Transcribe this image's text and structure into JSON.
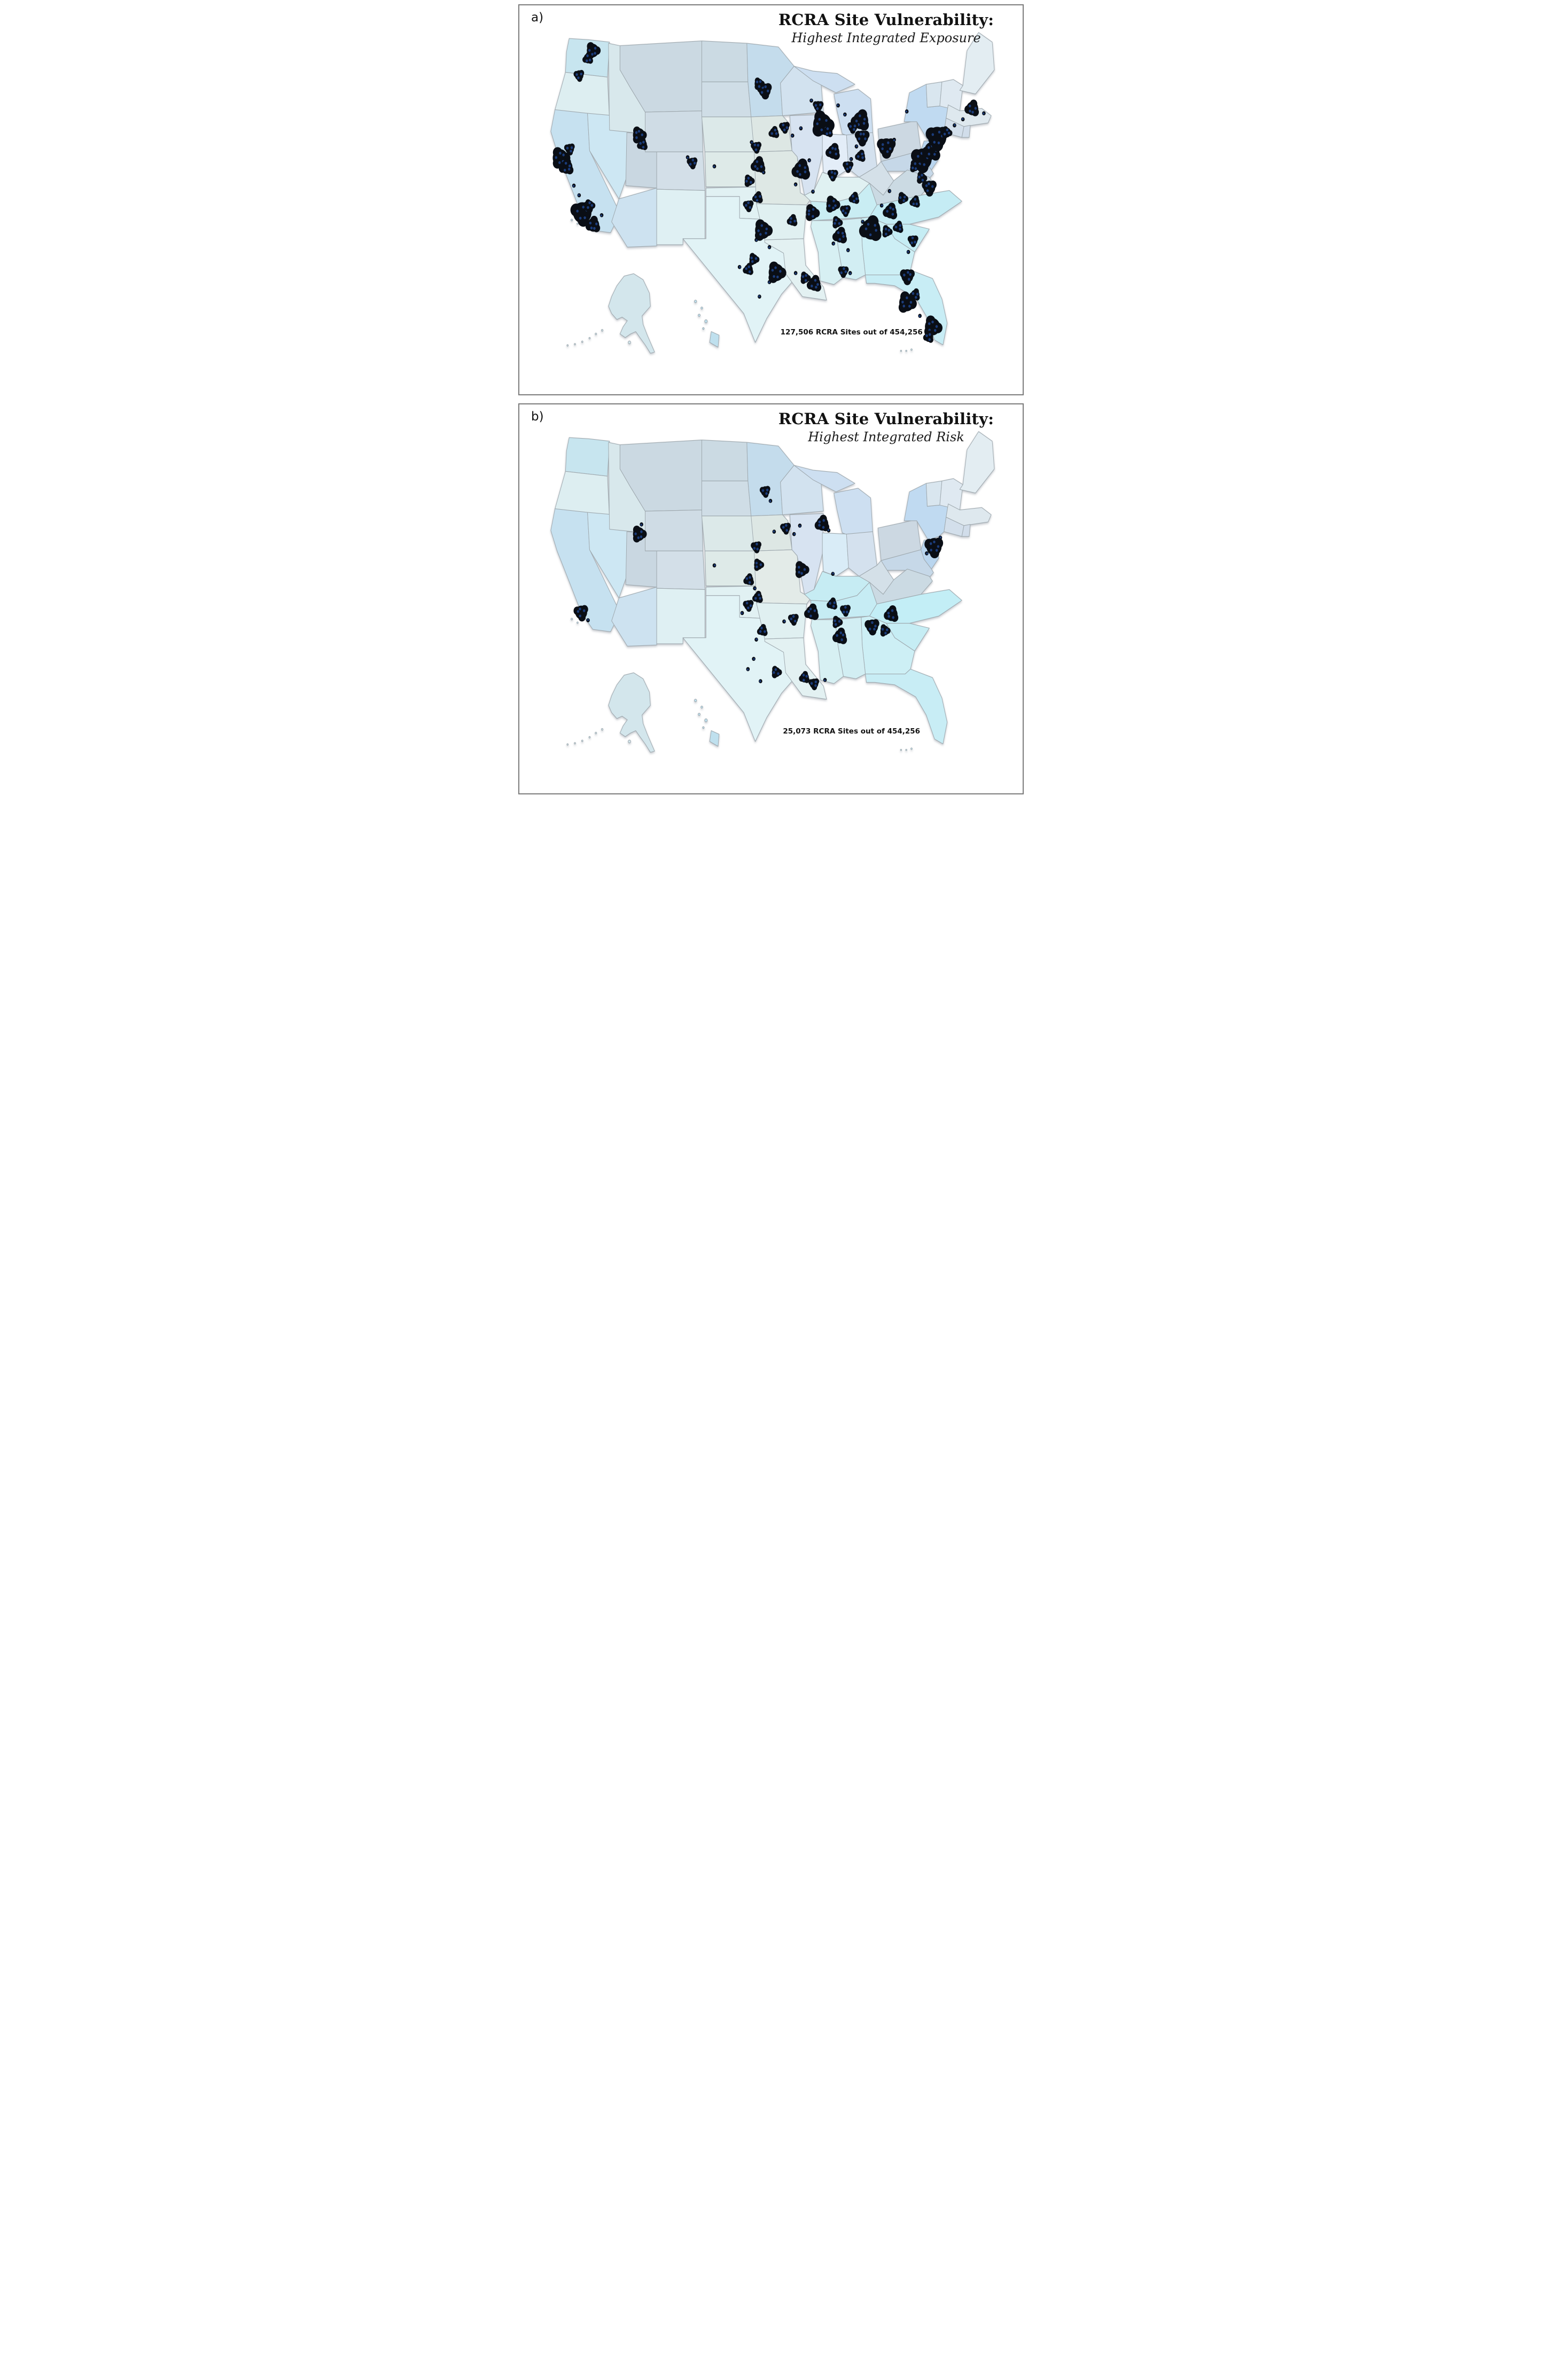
{
  "figure": {
    "kind": "two-panel choropleth dot map of the contiguous United States",
    "dot_meaning": "RCRA site locations"
  },
  "colors": {
    "dot_core": "#0a0e15",
    "dot_inner": "#1b3c7a",
    "state_border": "#9fa9af",
    "panel_border": "#7b7b7b",
    "background": "#ffffff",
    "text": "#111111"
  },
  "map_fills": {
    "WA": "#c7e5ef",
    "OR": "#ddeef1",
    "CA": "#c6e1f0",
    "NV": "#cde7f3",
    "ID": "#d8e8ec",
    "MT": "#cbd9e2",
    "WY": "#cfdce5",
    "UT": "#c9d7e1",
    "CO": "#d3dfe8",
    "AZ": "#cde2f0",
    "NM": "#dff0f3",
    "ND": "#cbdae3",
    "SD": "#cfdde6",
    "NE": "#dce9e9",
    "KS": "#deeae8",
    "OK": "#e1f1f3",
    "TX": "#e1f3f6",
    "MN": "#c4dcec",
    "IA": "#dde7e4",
    "MO": "#dee8e5",
    "WI": "#d2e2ef",
    "IL": "#d7e3f1",
    "MI": "#cddff1",
    "IN": "#dcebf6",
    "OH": "#d4e1ee",
    "KY": "#dcecee",
    "TN": "#c9edf3",
    "PA": "#ccd8e2",
    "NY": "#c0daf1",
    "NJ": "#b9d5ee",
    "MD": "#c6d8e8",
    "WV": "#d4e0e8",
    "VA": "#cbdae3",
    "NC": "#c5ecf4",
    "SC": "#c6edf4",
    "GA": "#cdeff5",
    "AL": "#d2eef3",
    "MS": "#d7f0f3",
    "AR": "#e0f0f1",
    "LA": "#e3f1f2",
    "FL": "#c8edf5",
    "VT": "#d9e6ef",
    "NH": "#dfe9f1",
    "ME": "#e3edf2",
    "MA": "#dee8ee",
    "CT": "#d3dfeb",
    "RI": "#d1ddea",
    "AK": "#d3e6ec",
    "HI": "#bfe0ee"
  },
  "panels": [
    {
      "id": "a",
      "label": "a)",
      "title": "RCRA Site Vulnerability:",
      "subtitle": "Highest Integrated Exposure",
      "caption": "127,506 RCRA Sites out of 454,256",
      "sites_shown": "127,506",
      "sites_total": "454,256",
      "fill_overrides": {
        "KY": "#e0f1f2",
        "IN": "#e3edf8"
      },
      "clusters": [
        [
          140,
          60,
          3
        ],
        [
          131,
          73,
          2
        ],
        [
          114,
          101,
          2
        ],
        [
          78,
          238,
          4
        ],
        [
          90,
          253,
          3
        ],
        [
          96,
          223,
          2
        ],
        [
          104,
          284,
          1
        ],
        [
          114,
          300,
          1
        ],
        [
          120,
          329,
          5
        ],
        [
          134,
          317,
          2
        ],
        [
          141,
          349,
          3
        ],
        [
          157,
          333,
          1
        ],
        [
          228,
          200,
          3
        ],
        [
          235,
          216,
          2
        ],
        [
          330,
          246,
          2
        ],
        [
          321,
          237,
          1
        ],
        [
          372,
          252,
          1
        ],
        [
          468,
          126,
          3
        ],
        [
          457,
          115,
          2
        ],
        [
          486,
          196,
          2
        ],
        [
          506,
          187,
          2
        ],
        [
          521,
          201,
          1
        ],
        [
          537,
          189,
          1
        ],
        [
          452,
          220,
          2
        ],
        [
          443,
          212,
          1
        ],
        [
          456,
          250,
          3
        ],
        [
          466,
          262,
          1
        ],
        [
          438,
          276,
          2
        ],
        [
          538,
          258,
          4
        ],
        [
          553,
          242,
          1
        ],
        [
          527,
          282,
          1
        ],
        [
          455,
          304,
          2
        ],
        [
          437,
          317,
          2
        ],
        [
          464,
          358,
          4
        ],
        [
          452,
          374,
          1
        ],
        [
          477,
          386,
          1
        ],
        [
          447,
          406,
          2
        ],
        [
          437,
          423,
          2
        ],
        [
          420,
          419,
          1
        ],
        [
          490,
          428,
          4
        ],
        [
          477,
          444,
          1
        ],
        [
          458,
          468,
          1
        ],
        [
          545,
          437,
          2
        ],
        [
          563,
          447,
          3
        ],
        [
          527,
          429,
          1
        ],
        [
          558,
          329,
          3
        ],
        [
          521,
          342,
          2
        ],
        [
          560,
          294,
          1
        ],
        [
          597,
          315,
          3
        ],
        [
          639,
          305,
          2
        ],
        [
          622,
          325,
          2
        ],
        [
          606,
          345,
          2
        ],
        [
          612,
          367,
          3
        ],
        [
          599,
          380,
          1
        ],
        [
          627,
          391,
          1
        ],
        [
          671,
          356,
          5
        ],
        [
          655,
          344,
          1
        ],
        [
          701,
          360,
          2
        ],
        [
          723,
          353,
          2
        ],
        [
          751,
          375,
          2
        ],
        [
          742,
          394,
          1
        ],
        [
          708,
          327,
          3
        ],
        [
          691,
          317,
          1
        ],
        [
          731,
          305,
          2
        ],
        [
          755,
          311,
          2
        ],
        [
          782,
          287,
          3
        ],
        [
          767,
          271,
          2
        ],
        [
          706,
          293,
          1
        ],
        [
          769,
          240,
          5
        ],
        [
          754,
          252,
          2
        ],
        [
          787,
          226,
          4
        ],
        [
          797,
          204,
          5
        ],
        [
          815,
          196,
          2
        ],
        [
          864,
          156,
          3
        ],
        [
          886,
          164,
          1
        ],
        [
          846,
          174,
          1
        ],
        [
          830,
          184,
          1
        ],
        [
          700,
          220,
          4
        ],
        [
          715,
          208,
          1
        ],
        [
          739,
          161,
          1
        ],
        [
          654,
          204,
          3
        ],
        [
          643,
          219,
          1
        ],
        [
          651,
          235,
          2
        ],
        [
          627,
          252,
          2
        ],
        [
          633,
          240,
          1
        ],
        [
          599,
          228,
          3
        ],
        [
          598,
          266,
          2
        ],
        [
          578,
          182,
          5
        ],
        [
          589,
          194,
          2
        ],
        [
          570,
          152,
          2
        ],
        [
          557,
          143,
          1
        ],
        [
          651,
          176,
          4
        ],
        [
          636,
          187,
          2
        ],
        [
          621,
          166,
          1
        ],
        [
          608,
          151,
          1
        ],
        [
          740,
          434,
          3
        ],
        [
          739,
          478,
          4
        ],
        [
          755,
          465,
          2
        ],
        [
          764,
          500,
          1
        ],
        [
          788,
          518,
          4
        ],
        [
          781,
          535,
          2
        ],
        [
          618,
          426,
          2
        ],
        [
          631,
          429,
          1
        ]
      ]
    },
    {
      "id": "b",
      "label": "b)",
      "title": "RCRA Site Vulnerability:",
      "subtitle": "Highest Integrated Risk",
      "caption": "25,073 RCRA Sites out of 454,256",
      "sites_shown": "25,073",
      "sites_total": "454,256",
      "fill_overrides": {
        "KY": "#c6ecf3",
        "IN": "#d9ecf7",
        "NC": "#c3eef6",
        "MO": "#e3ebe8",
        "TN": "#c6ecf4"
      },
      "clusters": [
        [
          228,
          200,
          3
        ],
        [
          233,
          184,
          1
        ],
        [
          118,
          330,
          3
        ],
        [
          131,
          343,
          1
        ],
        [
          372,
          252,
          1
        ],
        [
          469,
          129,
          2
        ],
        [
          479,
          145,
          1
        ],
        [
          486,
          196,
          1
        ],
        [
          508,
          190,
          2
        ],
        [
          524,
          200,
          1
        ],
        [
          535,
          186,
          1
        ],
        [
          452,
          221,
          2
        ],
        [
          456,
          251,
          2
        ],
        [
          438,
          276,
          2
        ],
        [
          449,
          290,
          1
        ],
        [
          538,
          259,
          3
        ],
        [
          578,
          183,
          3
        ],
        [
          590,
          194,
          1
        ],
        [
          598,
          266,
          1
        ],
        [
          455,
          305,
          2
        ],
        [
          437,
          318,
          2
        ],
        [
          425,
          331,
          1
        ],
        [
          464,
          360,
          2
        ],
        [
          452,
          375,
          1
        ],
        [
          447,
          407,
          1
        ],
        [
          436,
          424,
          1
        ],
        [
          460,
          444,
          1
        ],
        [
          490,
          429,
          2
        ],
        [
          544,
          438,
          2
        ],
        [
          562,
          448,
          2
        ],
        [
          583,
          442,
          1
        ],
        [
          558,
          330,
          3
        ],
        [
          523,
          341,
          2
        ],
        [
          505,
          345,
          1
        ],
        [
          597,
          316,
          2
        ],
        [
          622,
          326,
          2
        ],
        [
          606,
          346,
          2
        ],
        [
          612,
          370,
          3
        ],
        [
          673,
          353,
          3
        ],
        [
          697,
          360,
          2
        ],
        [
          710,
          333,
          3
        ],
        [
          791,
          221,
          4
        ],
        [
          803,
          206,
          1
        ],
        [
          777,
          232,
          1
        ]
      ]
    }
  ]
}
